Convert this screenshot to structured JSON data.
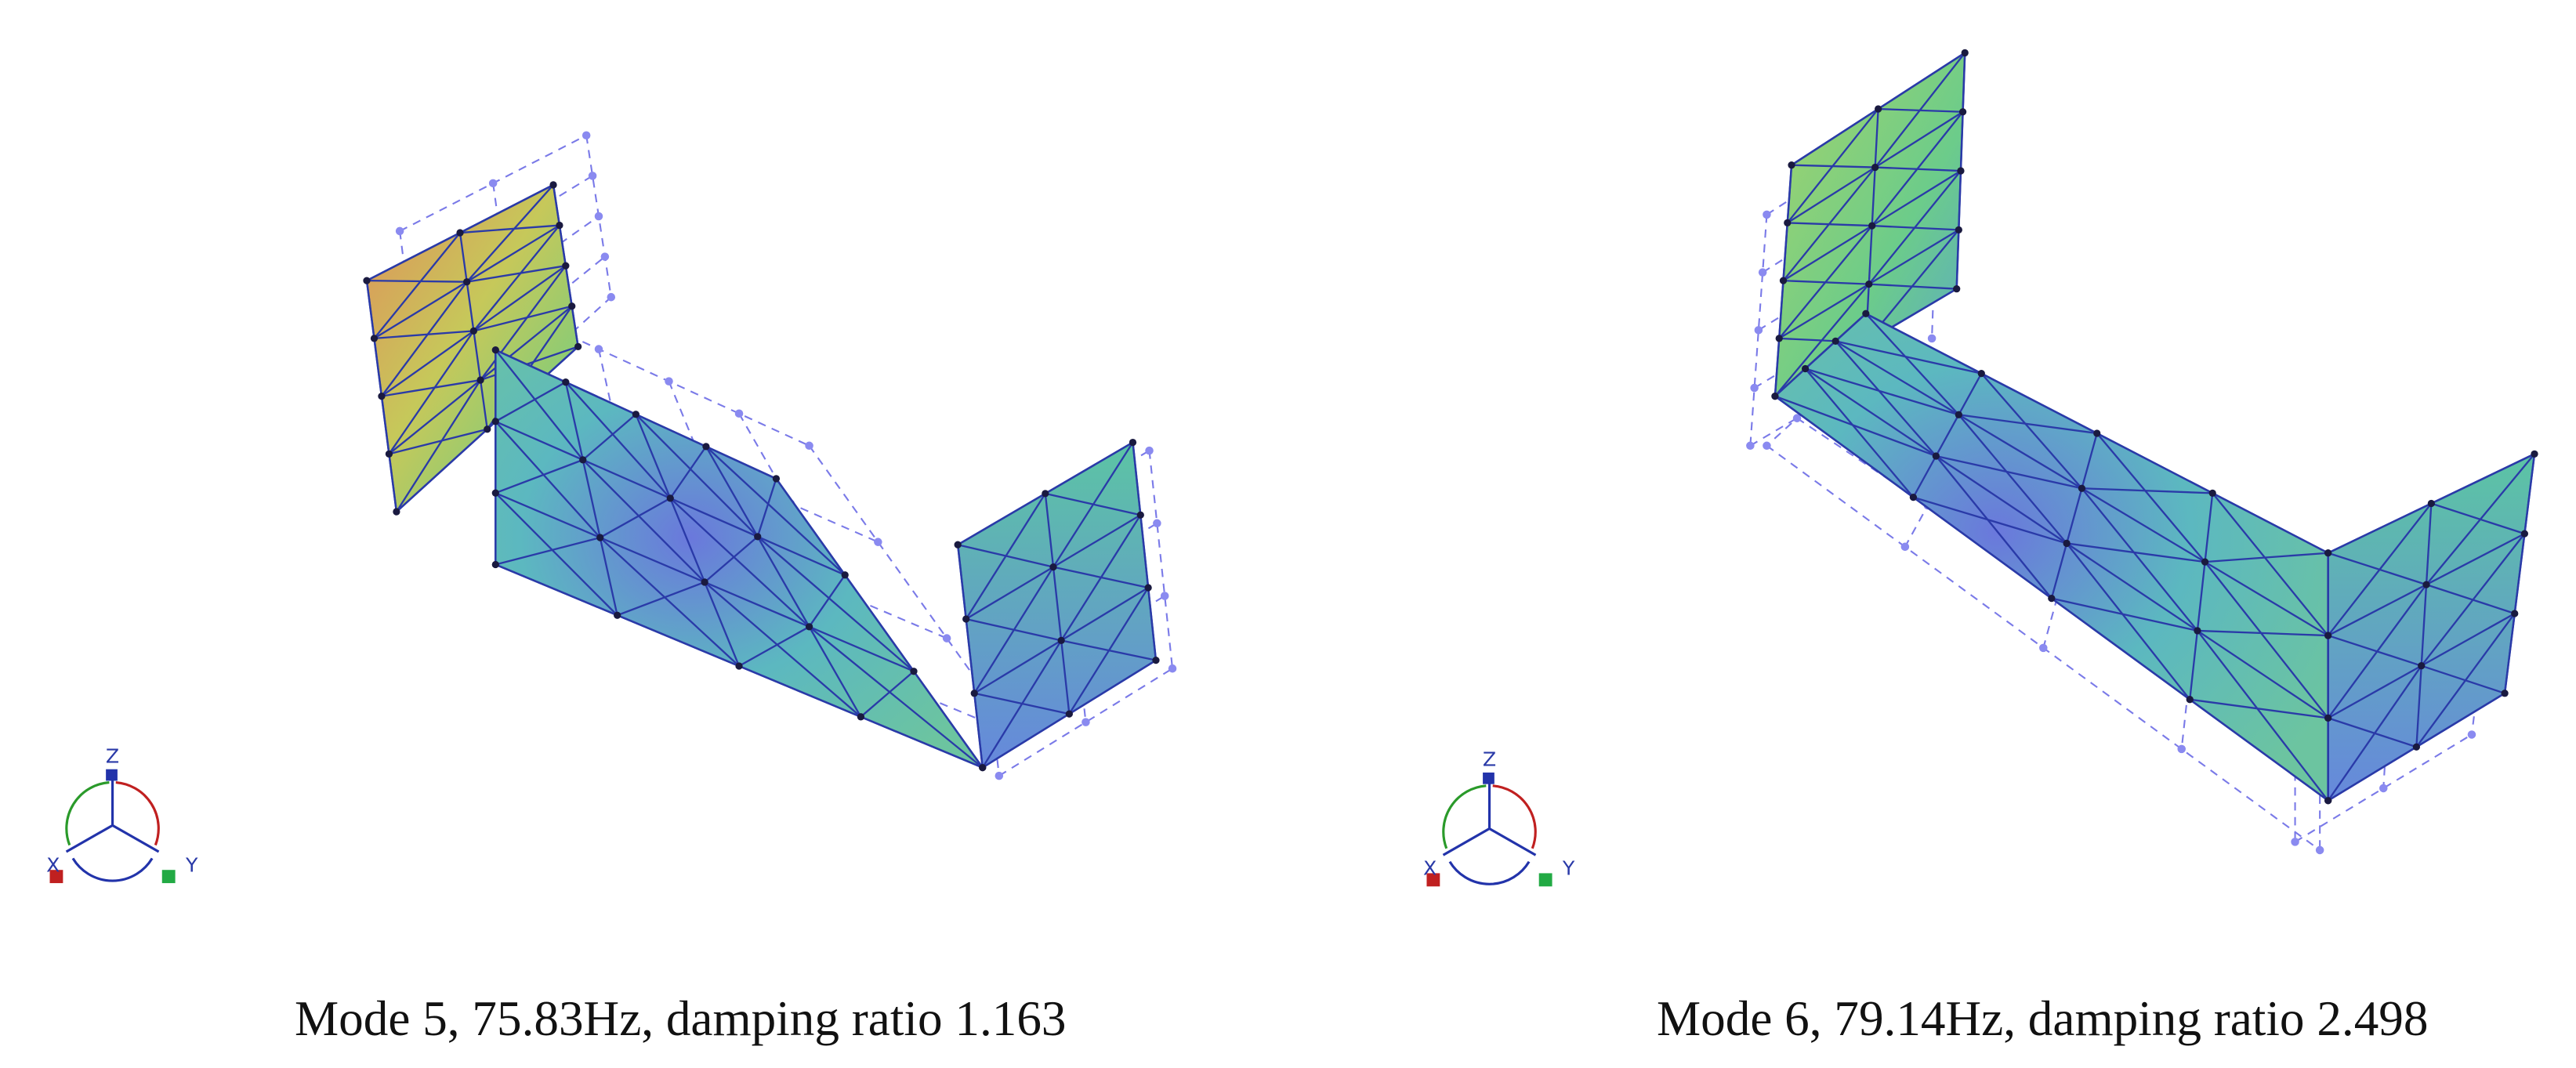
{
  "panels": [
    {
      "caption": "Mode 5, 75.83Hz, damping ratio 1.163",
      "axes": {
        "z": "Z",
        "x": "X",
        "y": "Y"
      }
    },
    {
      "caption": "Mode 6, 79.14Hz, damping ratio 2.498",
      "axes": {
        "z": "Z",
        "x": "X",
        "y": "Y"
      }
    }
  ]
}
